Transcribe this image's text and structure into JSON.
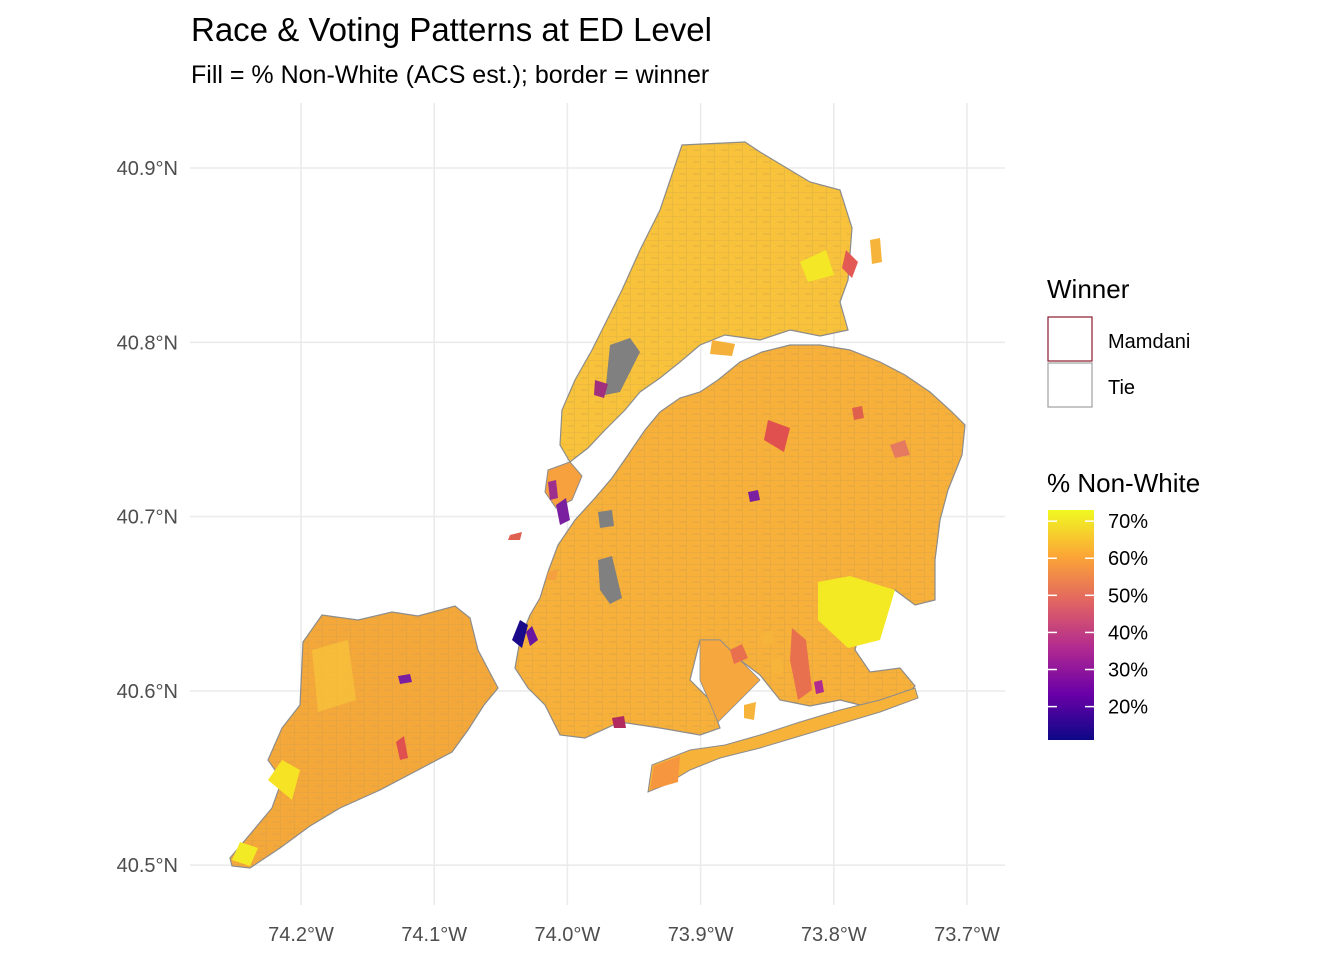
{
  "title": "Race & Voting Patterns at ED Level",
  "subtitle": "Fill = % Non-White (ACS est.); border = winner",
  "map": {
    "region": "New York City election districts",
    "fill_variable": "% Non-White",
    "border_variable": "Winner",
    "x_ticks": [
      {
        "lon": -74.2,
        "label": "74.2°W"
      },
      {
        "lon": -74.1,
        "label": "74.1°W"
      },
      {
        "lon": -74.0,
        "label": "74.0°W"
      },
      {
        "lon": -73.9,
        "label": "73.9°W"
      },
      {
        "lon": -73.8,
        "label": "73.8°W"
      },
      {
        "lon": -73.7,
        "label": "73.7°W"
      }
    ],
    "y_ticks": [
      {
        "lat": 40.9,
        "label": "40.9°N"
      },
      {
        "lat": 40.8,
        "label": "40.8°N"
      },
      {
        "lat": 40.7,
        "label": "40.7°N"
      },
      {
        "lat": 40.6,
        "label": "40.6°N"
      },
      {
        "lat": 40.5,
        "label": "40.5°N"
      }
    ],
    "lon_range": [
      -74.26,
      -73.7
    ],
    "lat_range": [
      40.495,
      40.915
    ]
  },
  "legend_winner": {
    "title": "Winner",
    "items": [
      {
        "label": "Mamdani",
        "border_color": "#8b1a2b"
      },
      {
        "label": "Tie",
        "border_color": "#a0a0a0"
      }
    ]
  },
  "legend_fill": {
    "title": "% Non-White",
    "labels": [
      {
        "value": 70,
        "label": "70%"
      },
      {
        "value": 60,
        "label": "60%"
      },
      {
        "value": 50,
        "label": "50%"
      },
      {
        "value": 40,
        "label": "40%"
      },
      {
        "value": 30,
        "label": "30%"
      },
      {
        "value": 20,
        "label": "20%"
      }
    ],
    "range": [
      11,
      73
    ],
    "palette": [
      "#0d0887",
      "#6a00a8",
      "#b12a90",
      "#e16462",
      "#fca636",
      "#f0f921"
    ]
  },
  "colors": {
    "tract_border": "#8c8c8c",
    "mamdani_border": "#8b1a2b",
    "missing": "#808080"
  }
}
